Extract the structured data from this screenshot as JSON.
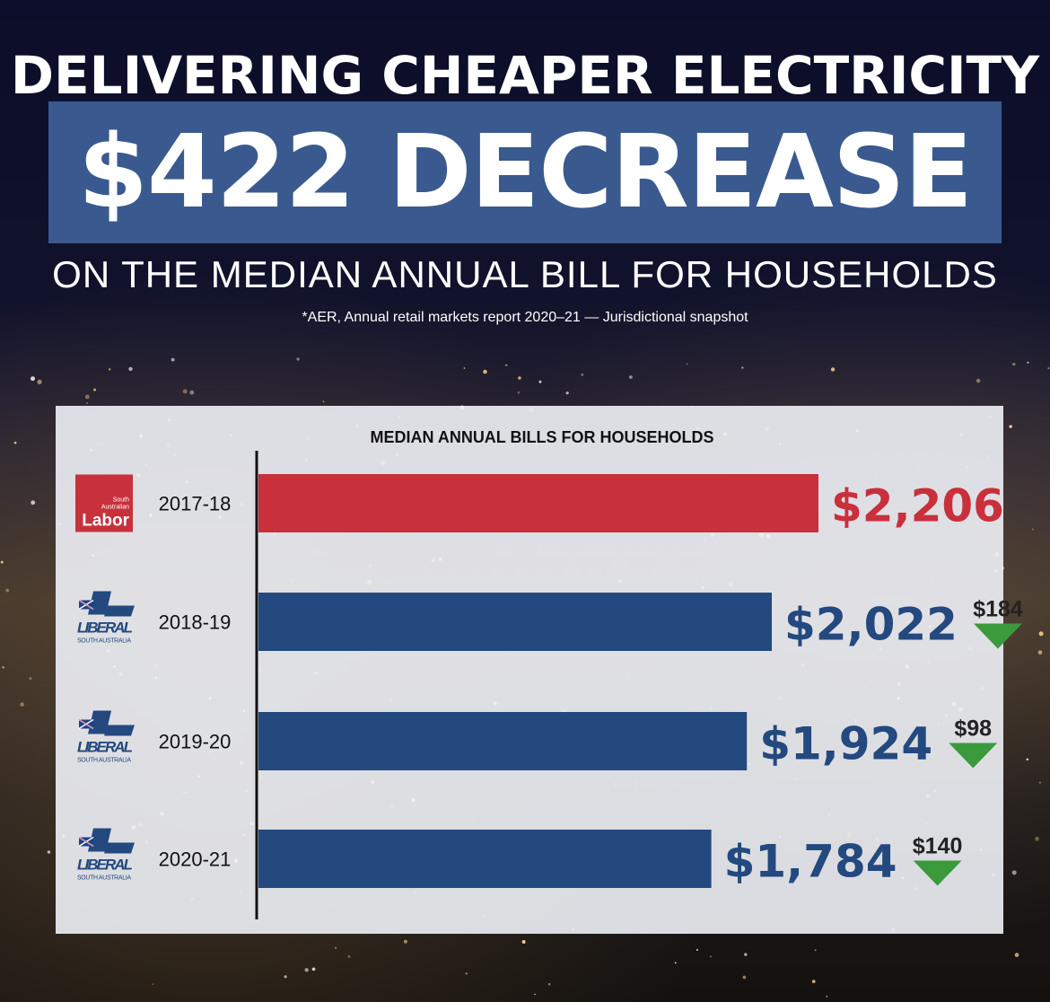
{
  "header": {
    "title": "DELIVERING CHEAPER ELECTRICITY",
    "banner": "$422 DECREASE",
    "subtitle": "ON THE MEDIAN ANNUAL BILL FOR HOUSEHOLDS",
    "source": "*AER, Annual retail markets report 2020–21 — Jurisdictional snapshot"
  },
  "logos": {
    "labor": {
      "line1": "South",
      "line2": "Australian",
      "word": "Labor"
    },
    "liberal": {
      "word": "LIBERAL",
      "sub": "SOUTH AUSTRALIA"
    }
  },
  "colors": {
    "labor_red": "#c8303c",
    "liberal_blue": "#23497f",
    "banner_blue": "#3a5a8f",
    "decrease_green": "#3a9a3c"
  },
  "chart_data": {
    "type": "bar",
    "orientation": "horizontal",
    "title": "MEDIAN ANNUAL BILLS FOR HOUSEHOLDS",
    "categories": [
      "2017-18",
      "2018-19",
      "2019-20",
      "2020-21"
    ],
    "values": [
      2206,
      2022,
      1924,
      1784
    ],
    "value_labels": [
      "$2,206",
      "$2,022",
      "$1,924",
      "$1,784"
    ],
    "party": [
      "labor",
      "liberal",
      "liberal",
      "liberal"
    ],
    "decreases": [
      null,
      184,
      98,
      140
    ],
    "decrease_labels": [
      "",
      "$184",
      "$98",
      "$140"
    ],
    "grid": false
  }
}
